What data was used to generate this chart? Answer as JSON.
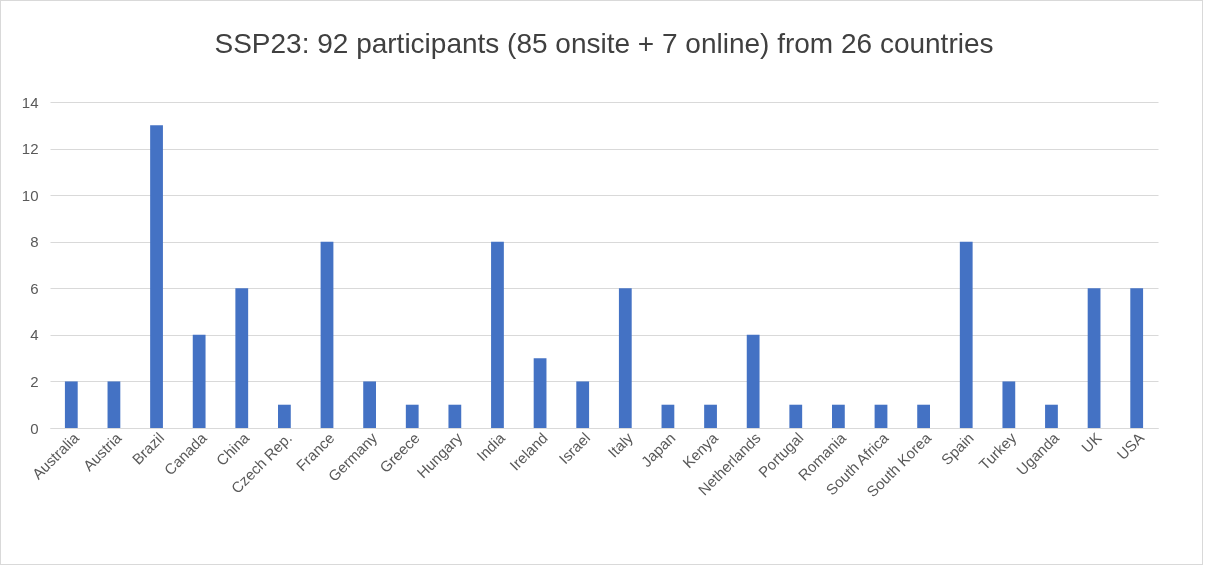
{
  "chart_data": {
    "type": "bar",
    "title": "SSP23: 92 participants (85 onsite + 7 online) from 26 countries",
    "categories": [
      "Australia",
      "Austria",
      "Brazil",
      "Canada",
      "China",
      "Czech Rep.",
      "France",
      "Germany",
      "Greece",
      "Hungary",
      "India",
      "Ireland",
      "Israel",
      "Italy",
      "Japan",
      "Kenya",
      "Netherlands",
      "Portugal",
      "Romania",
      "South Africa",
      "South Korea",
      "Spain",
      "Turkey",
      "Uganda",
      "UK",
      "USA"
    ],
    "values": [
      2,
      2,
      13,
      4,
      6,
      1,
      8,
      2,
      1,
      1,
      8,
      3,
      2,
      6,
      1,
      1,
      4,
      1,
      1,
      1,
      1,
      8,
      2,
      1,
      6,
      6
    ],
    "color": "#4472c4",
    "ylim": [
      0,
      14
    ],
    "yticks": [
      0,
      2,
      4,
      6,
      8,
      10,
      12,
      14
    ],
    "grid": "y"
  }
}
